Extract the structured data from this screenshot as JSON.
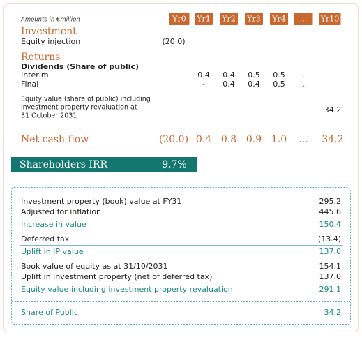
{
  "header": {
    "units_note": "Amounts in €million",
    "columns": [
      "Yr0",
      "Yr1",
      "Yr2",
      "Yr3",
      "Yr4",
      "...",
      "Yr10"
    ]
  },
  "investment": {
    "title": "Investment",
    "rows": [
      {
        "label": "Equity injection",
        "values": [
          "(20.0)",
          null,
          null,
          null,
          null,
          null,
          null
        ]
      }
    ]
  },
  "returns": {
    "title": "Returns",
    "subtitle": "Dividends (Share of public)",
    "rows": [
      {
        "label": "Interim",
        "values": [
          null,
          "0.4",
          "0.4",
          "0.5",
          "0.5",
          "...",
          null
        ]
      },
      {
        "label": "Final",
        "values": [
          null,
          "-",
          "0.4",
          "0.4",
          "0.5",
          "...",
          null
        ]
      }
    ],
    "equity_note": [
      "Equity value (share of public) including",
      "investment property revaluation at",
      "31 October 2031"
    ],
    "equity_values": [
      null,
      null,
      null,
      null,
      null,
      null,
      "34.2"
    ]
  },
  "net_cash_flow": {
    "label": "Net cash flow",
    "values": [
      "(20.0)",
      "0.4",
      "0.8",
      "0.9",
      "1.0",
      "...",
      "34.2"
    ]
  },
  "irr": {
    "label": "Shareholders IRR",
    "value": "9.7%"
  },
  "valuation": {
    "rows": [
      {
        "label": "Investment property (book) value at FY31",
        "value": "295.2"
      },
      {
        "label": "Adjusted for inflation",
        "value": "445.6"
      },
      {
        "label": "Increase in value",
        "value": "150.4",
        "total": true
      },
      {
        "label": "Deferred tax",
        "value": "(13.4)"
      },
      {
        "label": "Uplift in IP value",
        "value": "137.0",
        "total": true
      },
      {
        "label": "Book value of equity as at 31/10/2031",
        "value": "154.1"
      },
      {
        "label": "Uplift in investment property (net of deferred tax)",
        "value": "137.0"
      },
      {
        "label": "Equity value including investment property revaluation",
        "value": "291.1",
        "total": true
      },
      {
        "label": "Share of Public",
        "value": "34.2",
        "total": true
      }
    ]
  }
}
